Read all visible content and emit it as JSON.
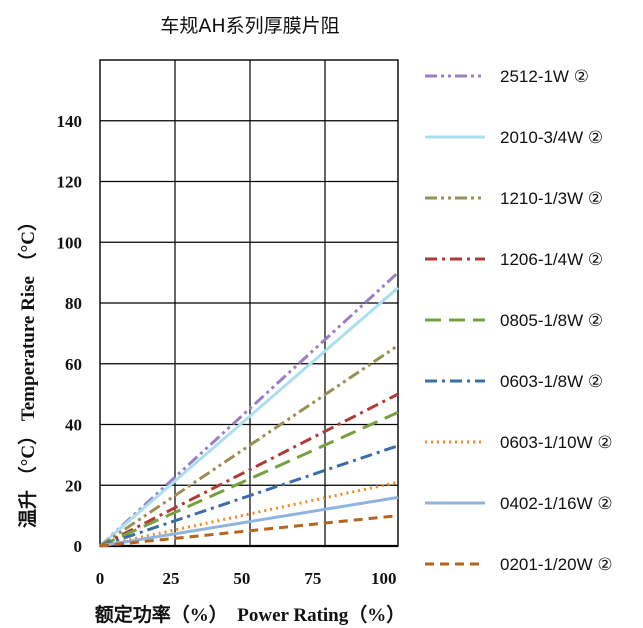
{
  "chart_data": {
    "type": "line",
    "title": "车规AH系列厚膜片阻",
    "xlabel": "额定功率（%）　Power Rating（%）",
    "ylabel": "温升 （°C） Temperature Rise （°C）",
    "xlim": [
      0,
      105
    ],
    "ylim": [
      0,
      160
    ],
    "x_ticks": [
      "0",
      "25",
      "50",
      "75",
      "100"
    ],
    "y_ticks": [
      "0",
      "20",
      "40",
      "60",
      "80",
      "100",
      "120",
      "140"
    ],
    "grid": true,
    "legend_position": "right",
    "series": [
      {
        "name": "2512-1W ②",
        "color": "#9b7fc0",
        "dash": "dash-dot-dot",
        "x": [
          0,
          105
        ],
        "y": [
          0,
          90
        ]
      },
      {
        "name": "2010-3/4W ②",
        "color": "#a9dff0",
        "dash": "solid",
        "x": [
          0,
          105
        ],
        "y": [
          0,
          85
        ]
      },
      {
        "name": "1210-1/3W ②",
        "color": "#9b8f55",
        "dash": "dash-dot-dot",
        "x": [
          0,
          105
        ],
        "y": [
          0,
          66
        ]
      },
      {
        "name": "1206-1/4W ②",
        "color": "#b03a38",
        "dash": "dash-dot",
        "x": [
          0,
          105
        ],
        "y": [
          0,
          50
        ]
      },
      {
        "name": "0805-1/8W ②",
        "color": "#77a041",
        "dash": "long-dash",
        "x": [
          0,
          105
        ],
        "y": [
          0,
          44
        ]
      },
      {
        "name": "0603-1/8W ②",
        "color": "#3a6ea5",
        "dash": "dash-dot",
        "x": [
          0,
          105
        ],
        "y": [
          0,
          33
        ]
      },
      {
        "name": "0603-1/10W ②",
        "color": "#f08a24",
        "dash": "dotted",
        "x": [
          0,
          105
        ],
        "y": [
          0,
          21
        ]
      },
      {
        "name": "0402-1/16W ②",
        "color": "#8fb4e0",
        "dash": "solid",
        "x": [
          0,
          105
        ],
        "y": [
          0,
          16
        ]
      },
      {
        "name": "0201-1/20W ②",
        "color": "#b5651d",
        "dash": "dashed",
        "x": [
          0,
          105
        ],
        "y": [
          0,
          10
        ]
      }
    ]
  }
}
